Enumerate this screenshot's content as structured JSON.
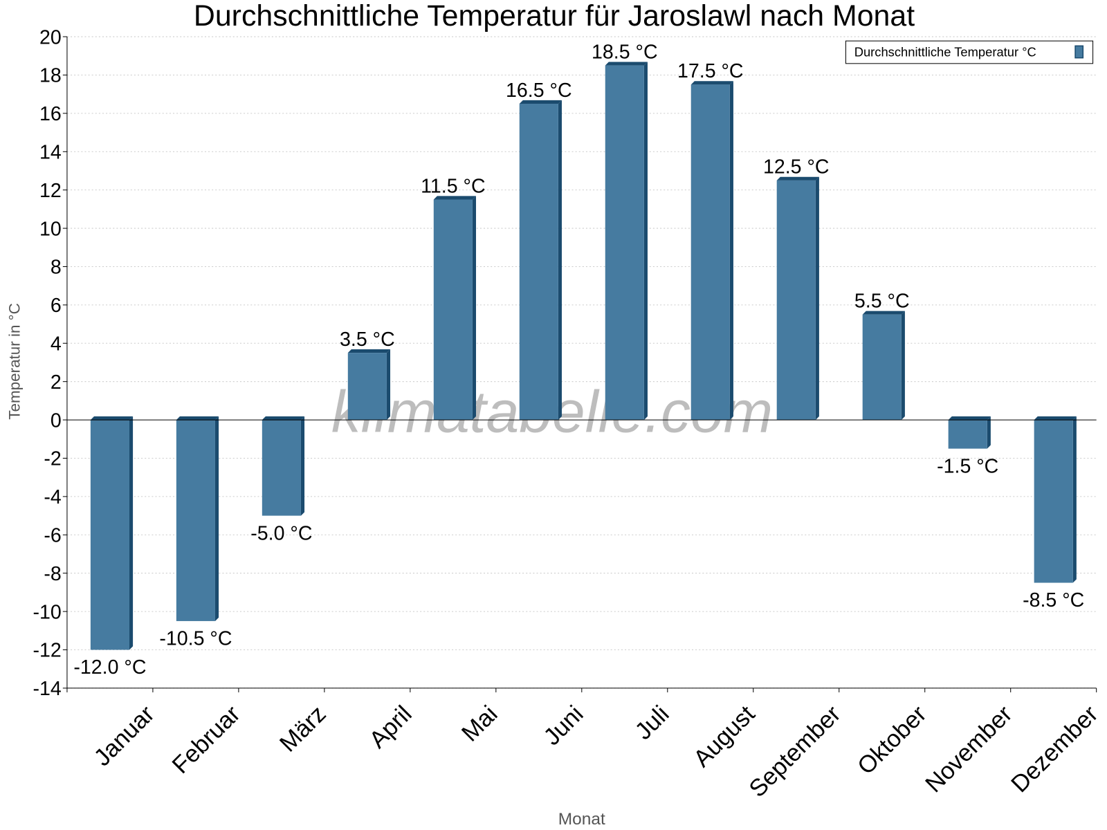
{
  "chart_data": {
    "type": "bar",
    "title": "Durchschnittliche Temperatur für Jaroslawl nach Monat",
    "xlabel": "Monat",
    "ylabel": "Temperatur in °C",
    "categories": [
      "Januar",
      "Februar",
      "März",
      "April",
      "Mai",
      "Juni",
      "Juli",
      "August",
      "September",
      "Oktober",
      "November",
      "Dezember"
    ],
    "series": [
      {
        "name": "Durchschnittliche Temperatur °C",
        "values": [
          -12.0,
          -10.5,
          -5.0,
          3.5,
          11.5,
          16.5,
          18.5,
          17.5,
          12.5,
          5.5,
          -1.5,
          -8.5
        ],
        "labels": [
          "-12.0 °C",
          "-10.5 °C",
          "-5.0 °C",
          "3.5 °C",
          "11.5 °C",
          "16.5 °C",
          "18.5 °C",
          "17.5 °C",
          "12.5 °C",
          "5.5 °C",
          "-1.5 °C",
          "-8.5 °C"
        ]
      }
    ],
    "ylim": [
      -14,
      20
    ],
    "yticks": [
      -14,
      -12,
      -10,
      -8,
      -6,
      -4,
      -2,
      0,
      2,
      4,
      6,
      8,
      10,
      12,
      14,
      16,
      18,
      20
    ],
    "grid": true,
    "legend": "top-right",
    "colors": {
      "bar": "#467ba0",
      "bar_side": "#1b4b6e"
    },
    "watermark": "klimatabelle.com"
  }
}
